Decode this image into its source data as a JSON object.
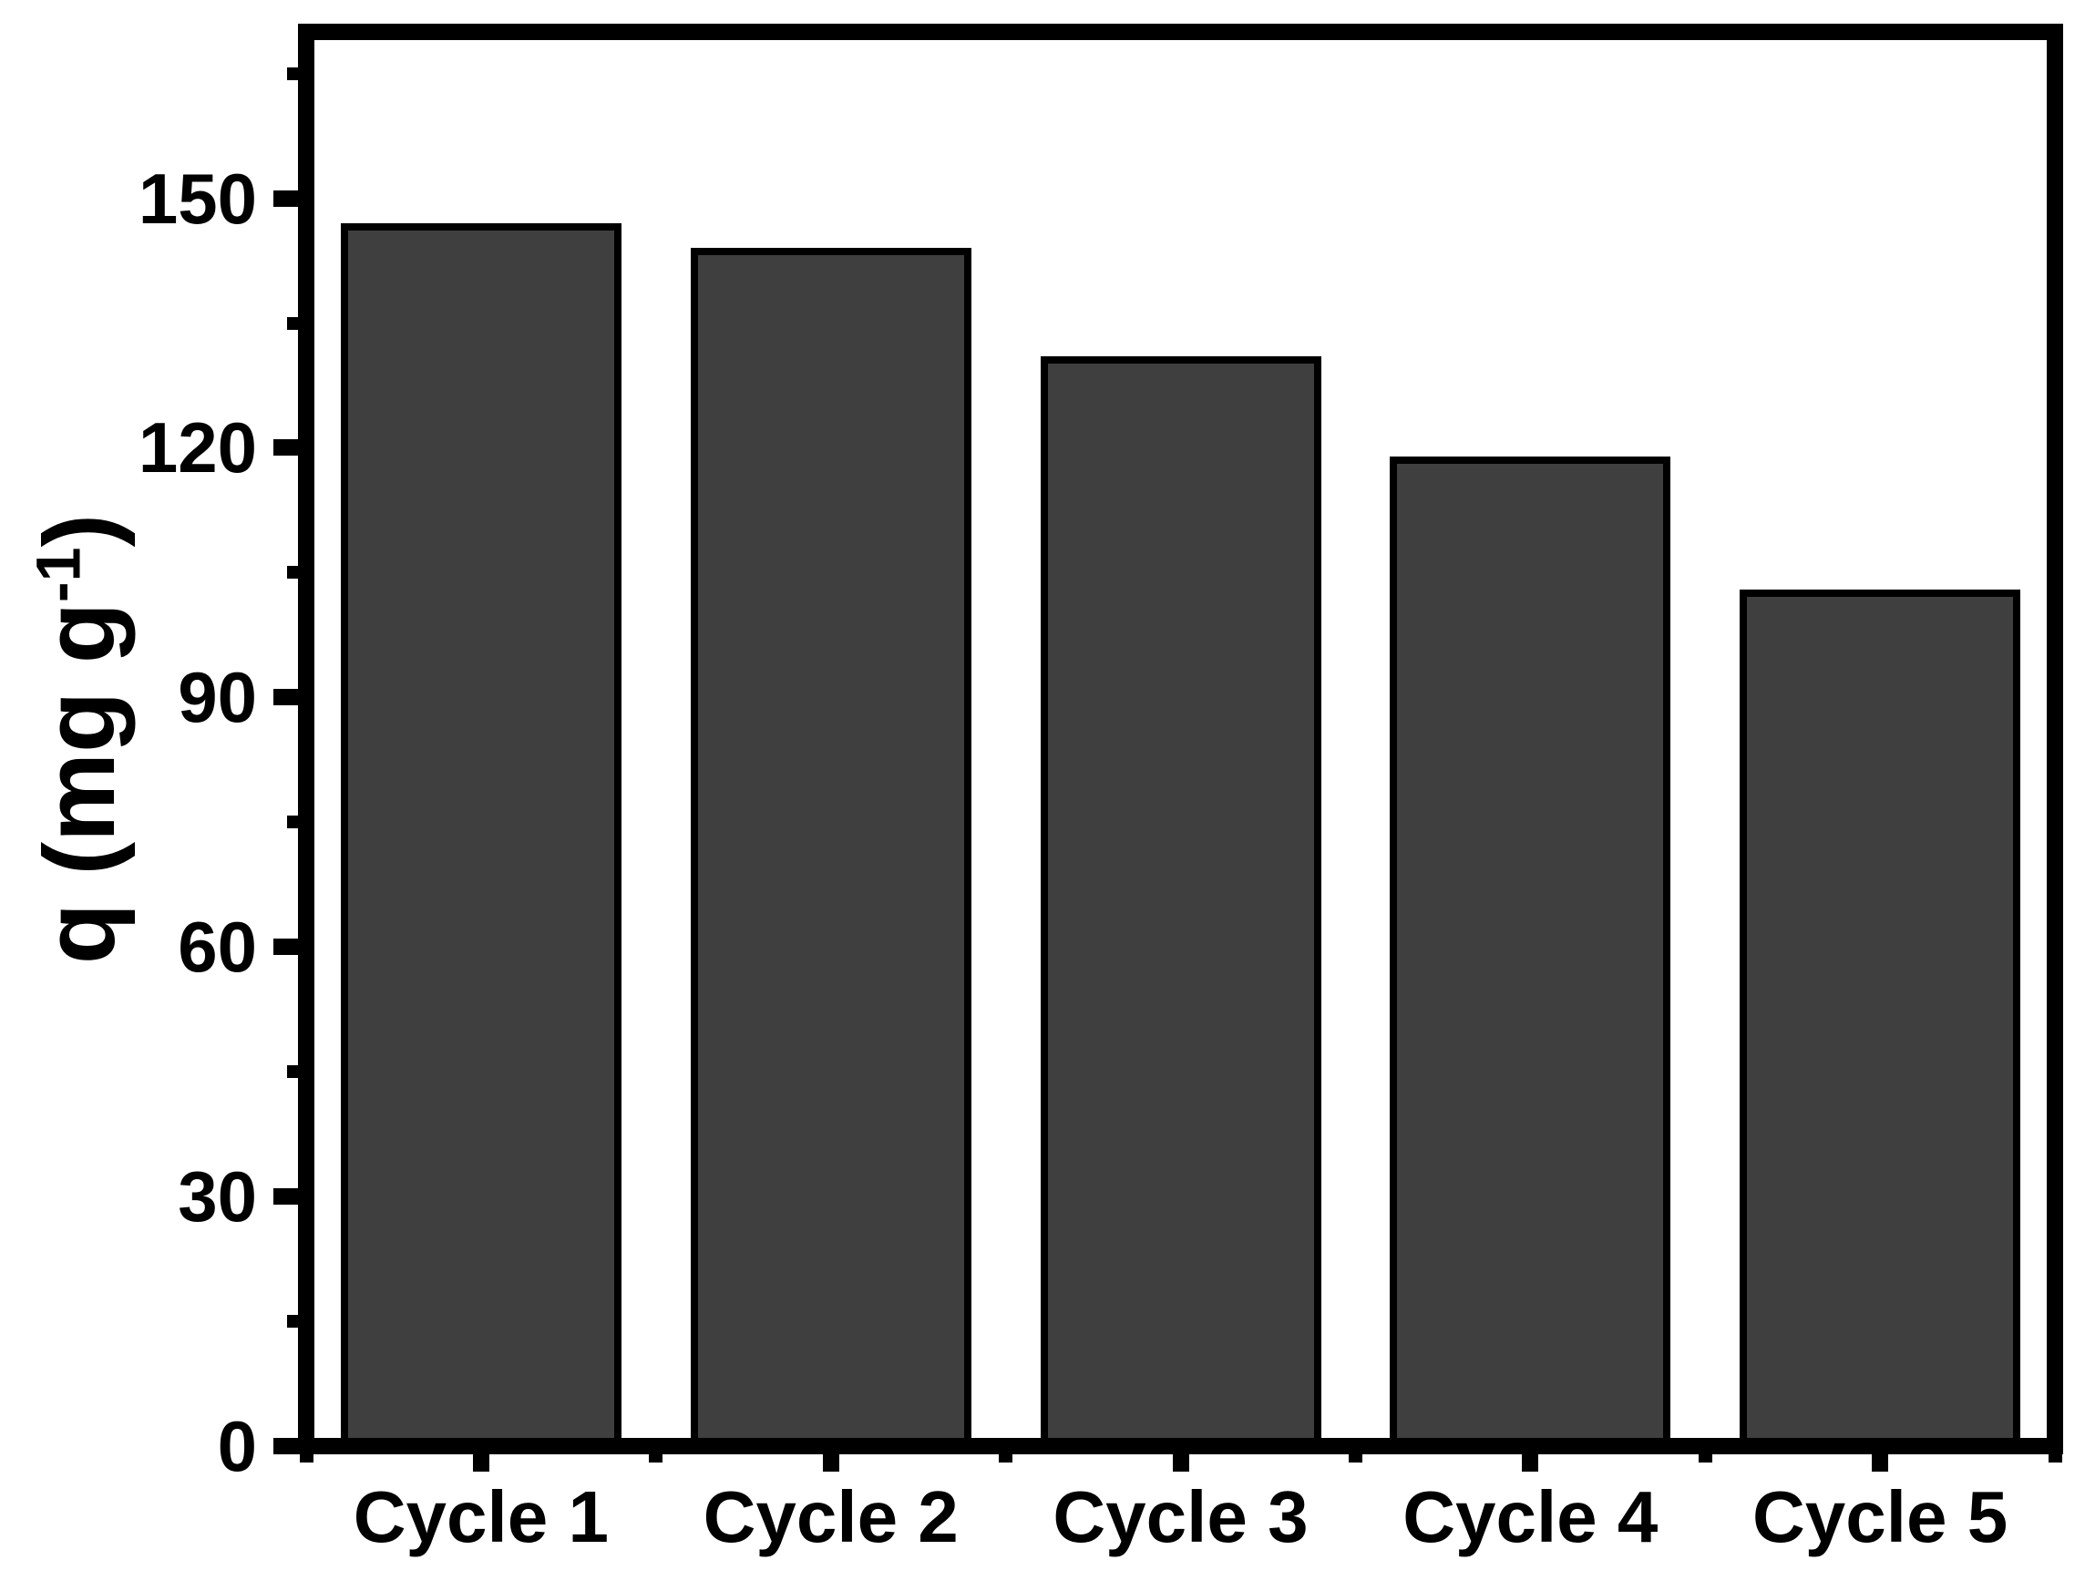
{
  "chart_data": {
    "type": "bar",
    "categories": [
      "Cycle 1",
      "Cycle 2",
      "Cycle 3",
      "Cycle 4",
      "Cycle 5"
    ],
    "values": [
      147,
      144,
      131,
      119,
      103
    ],
    "xlabel": "",
    "ylabel": "q (mg g⁻¹)",
    "ylabel_parts": {
      "pre": "q (mg g",
      "sup": "-1",
      "post": ")"
    },
    "ytick_labels": [
      "0",
      "30",
      "60",
      "90",
      "120",
      "150"
    ],
    "yticks_major": [
      0,
      30,
      60,
      90,
      120,
      150
    ],
    "yticks_minor": [
      15,
      45,
      75,
      105,
      135,
      165
    ],
    "ylim": [
      0,
      170
    ],
    "grid": false,
    "legend": "none",
    "colors": {
      "bar_fill": "#3f3f3f",
      "bar_border": "#000000",
      "axis": "#000000",
      "text": "#000000",
      "background": "#ffffff"
    }
  }
}
